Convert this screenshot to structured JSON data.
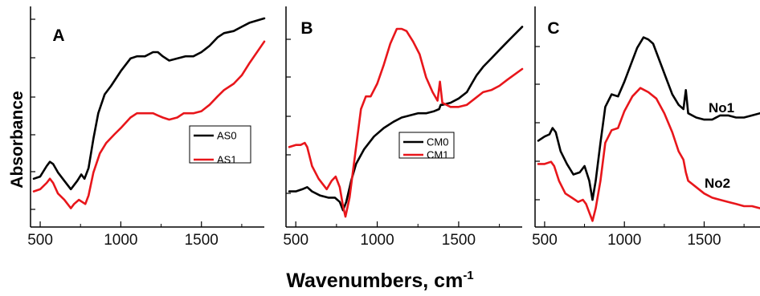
{
  "figure": {
    "ylabel": "Absorbance",
    "xlabel": "Wavenumbers, cm",
    "xlabel_superscript": "-1"
  },
  "colors": {
    "black_series": "#000000",
    "red_series": "#e8161b"
  },
  "chart_data": [
    {
      "type": "line",
      "panel": "A",
      "xlim": [
        440,
        1890
      ],
      "ylim": [
        0,
        1
      ],
      "xticks": [
        500,
        1000,
        1500
      ],
      "xtick_labels": [
        "500",
        "1000",
        "1500"
      ],
      "grid": false,
      "legend_position": "center-right",
      "series": [
        {
          "name": "AS0",
          "color": "#000000",
          "x": [
            460,
            500,
            540,
            560,
            580,
            610,
            650,
            690,
            730,
            755,
            775,
            800,
            830,
            860,
            900,
            940,
            1000,
            1060,
            1100,
            1150,
            1200,
            1230,
            1260,
            1300,
            1350,
            1400,
            1450,
            1500,
            1550,
            1600,
            1640,
            1700,
            1750,
            1800,
            1890
          ],
          "y": [
            0.21,
            0.22,
            0.27,
            0.29,
            0.28,
            0.24,
            0.2,
            0.16,
            0.2,
            0.23,
            0.21,
            0.26,
            0.4,
            0.52,
            0.61,
            0.65,
            0.72,
            0.78,
            0.79,
            0.79,
            0.81,
            0.81,
            0.79,
            0.77,
            0.78,
            0.79,
            0.79,
            0.81,
            0.84,
            0.88,
            0.9,
            0.91,
            0.93,
            0.95,
            0.97
          ]
        },
        {
          "name": "AS1",
          "color": "#e8161b",
          "x": [
            460,
            500,
            540,
            560,
            580,
            610,
            650,
            680,
            690,
            710,
            740,
            760,
            780,
            800,
            830,
            870,
            910,
            960,
            1000,
            1060,
            1100,
            1150,
            1200,
            1230,
            1260,
            1300,
            1350,
            1390,
            1450,
            1500,
            1550,
            1600,
            1640,
            1700,
            1750,
            1800,
            1890
          ],
          "y": [
            0.15,
            0.16,
            0.19,
            0.21,
            0.19,
            0.14,
            0.11,
            0.08,
            0.07,
            0.09,
            0.11,
            0.1,
            0.09,
            0.13,
            0.24,
            0.33,
            0.38,
            0.42,
            0.45,
            0.5,
            0.52,
            0.52,
            0.52,
            0.51,
            0.5,
            0.49,
            0.5,
            0.52,
            0.52,
            0.53,
            0.56,
            0.6,
            0.63,
            0.66,
            0.7,
            0.76,
            0.86
          ]
        }
      ]
    },
    {
      "type": "line",
      "panel": "B",
      "xlim": [
        440,
        1890
      ],
      "ylim": [
        0,
        1
      ],
      "xticks": [
        500,
        1000,
        1500
      ],
      "xtick_labels": [
        "500",
        "1000",
        "1500"
      ],
      "grid": false,
      "legend_position": "center",
      "series": [
        {
          "name": "CM0",
          "color": "#000000",
          "x": [
            460,
            500,
            540,
            570,
            600,
            650,
            700,
            740,
            770,
            790,
            810,
            840,
            870,
            920,
            980,
            1040,
            1100,
            1150,
            1200,
            1250,
            1300,
            1350,
            1380,
            1390,
            1400,
            1450,
            1500,
            1550,
            1580,
            1610,
            1650,
            1700,
            1750,
            1800,
            1890
          ],
          "y": [
            0.15,
            0.15,
            0.16,
            0.17,
            0.15,
            0.13,
            0.12,
            0.12,
            0.1,
            0.06,
            0.1,
            0.2,
            0.28,
            0.35,
            0.41,
            0.45,
            0.48,
            0.5,
            0.51,
            0.52,
            0.52,
            0.53,
            0.54,
            0.56,
            0.56,
            0.57,
            0.59,
            0.62,
            0.66,
            0.7,
            0.74,
            0.78,
            0.82,
            0.86,
            0.93
          ]
        },
        {
          "name": "CM1",
          "color": "#e8161b",
          "x": [
            460,
            500,
            530,
            555,
            570,
            600,
            640,
            690,
            720,
            745,
            770,
            790,
            805,
            830,
            860,
            900,
            930,
            960,
            1000,
            1040,
            1080,
            1120,
            1150,
            1180,
            1220,
            1260,
            1300,
            1340,
            1370,
            1385,
            1400,
            1450,
            1500,
            1550,
            1600,
            1650,
            1700,
            1750,
            1800,
            1890
          ],
          "y": [
            0.36,
            0.37,
            0.37,
            0.38,
            0.36,
            0.27,
            0.21,
            0.16,
            0.2,
            0.22,
            0.17,
            0.08,
            0.03,
            0.12,
            0.3,
            0.54,
            0.6,
            0.6,
            0.66,
            0.75,
            0.85,
            0.92,
            0.92,
            0.91,
            0.86,
            0.8,
            0.69,
            0.62,
            0.58,
            0.67,
            0.57,
            0.55,
            0.55,
            0.56,
            0.59,
            0.62,
            0.63,
            0.65,
            0.68,
            0.73
          ]
        }
      ]
    },
    {
      "type": "line",
      "panel": "C",
      "xlim": [
        440,
        1850
      ],
      "ylim": [
        0,
        1
      ],
      "xticks": [
        500,
        1000,
        1500
      ],
      "xtick_labels": [
        "500",
        "1000",
        "1500"
      ],
      "grid": false,
      "series": [
        {
          "name": "No1",
          "color": "#000000",
          "x": [
            460,
            500,
            530,
            550,
            570,
            600,
            640,
            680,
            720,
            750,
            780,
            800,
            820,
            850,
            880,
            920,
            960,
            1000,
            1040,
            1080,
            1120,
            1150,
            1180,
            1220,
            1260,
            1300,
            1340,
            1370,
            1385,
            1400,
            1450,
            1500,
            1550,
            1600,
            1650,
            1700,
            1750,
            1800,
            1850
          ],
          "y": [
            0.39,
            0.41,
            0.42,
            0.45,
            0.43,
            0.34,
            0.28,
            0.23,
            0.24,
            0.27,
            0.2,
            0.11,
            0.2,
            0.38,
            0.55,
            0.61,
            0.6,
            0.67,
            0.75,
            0.83,
            0.88,
            0.87,
            0.85,
            0.77,
            0.69,
            0.61,
            0.56,
            0.54,
            0.63,
            0.52,
            0.5,
            0.49,
            0.49,
            0.51,
            0.51,
            0.5,
            0.5,
            0.51,
            0.52
          ]
        },
        {
          "name": "No2",
          "color": "#e8161b",
          "x": [
            460,
            500,
            540,
            560,
            590,
            630,
            670,
            710,
            740,
            760,
            780,
            800,
            820,
            850,
            880,
            920,
            960,
            1000,
            1050,
            1100,
            1150,
            1200,
            1250,
            1300,
            1340,
            1370,
            1385,
            1400,
            1450,
            1500,
            1550,
            1600,
            1650,
            1700,
            1750,
            1800,
            1850
          ],
          "y": [
            0.28,
            0.28,
            0.29,
            0.27,
            0.2,
            0.14,
            0.12,
            0.1,
            0.11,
            0.09,
            0.05,
            0.01,
            0.07,
            0.2,
            0.38,
            0.44,
            0.45,
            0.53,
            0.6,
            0.64,
            0.62,
            0.59,
            0.52,
            0.43,
            0.34,
            0.3,
            0.24,
            0.2,
            0.17,
            0.14,
            0.12,
            0.11,
            0.1,
            0.09,
            0.08,
            0.08,
            0.07
          ]
        }
      ],
      "series_labels": [
        "No1",
        "No2"
      ]
    }
  ]
}
